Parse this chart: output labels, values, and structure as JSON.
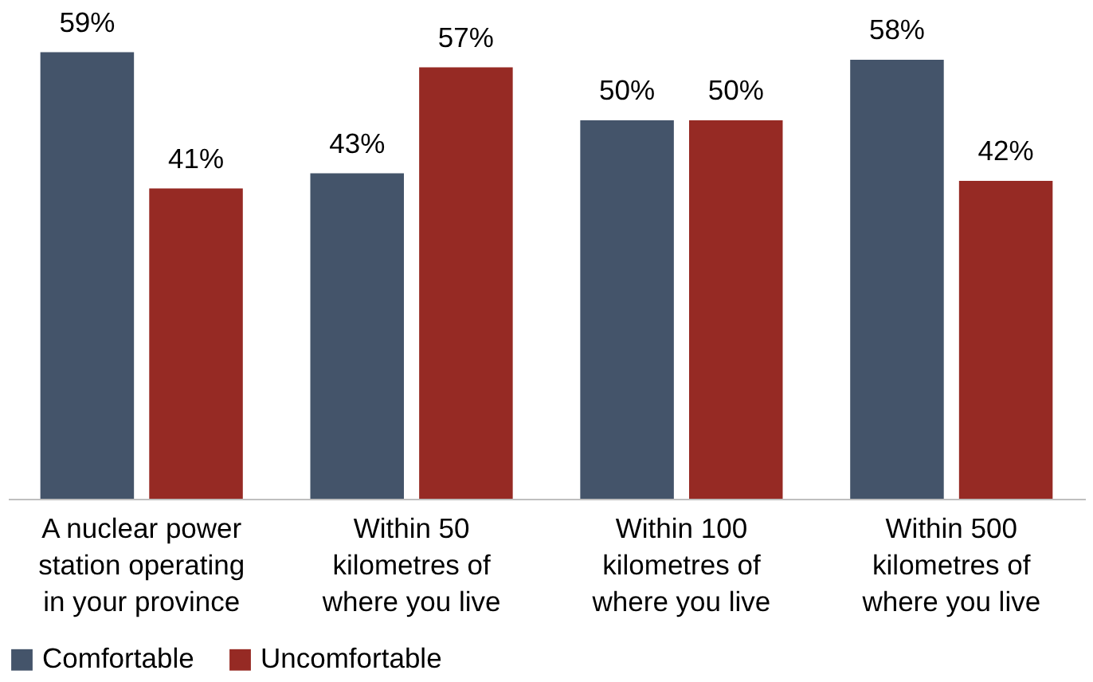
{
  "chart_data": {
    "type": "bar",
    "categories": [
      "A nuclear power station operating in your province",
      "Within 50 kilometres of where you live",
      "Within 100 kilometres of where you live",
      "Within 500 kilometres of where you live"
    ],
    "series": [
      {
        "name": "Comfortable",
        "color": "#44546a",
        "values": [
          59,
          43,
          50,
          58
        ],
        "value_labels": [
          "59%",
          "43%",
          "50%",
          "58%"
        ]
      },
      {
        "name": "Uncomfortable",
        "color": "#962a24",
        "values": [
          41,
          57,
          50,
          42
        ],
        "value_labels": [
          "41%",
          "57%",
          "50%",
          "42%"
        ]
      }
    ],
    "legend": "bottom",
    "grid": false
  }
}
